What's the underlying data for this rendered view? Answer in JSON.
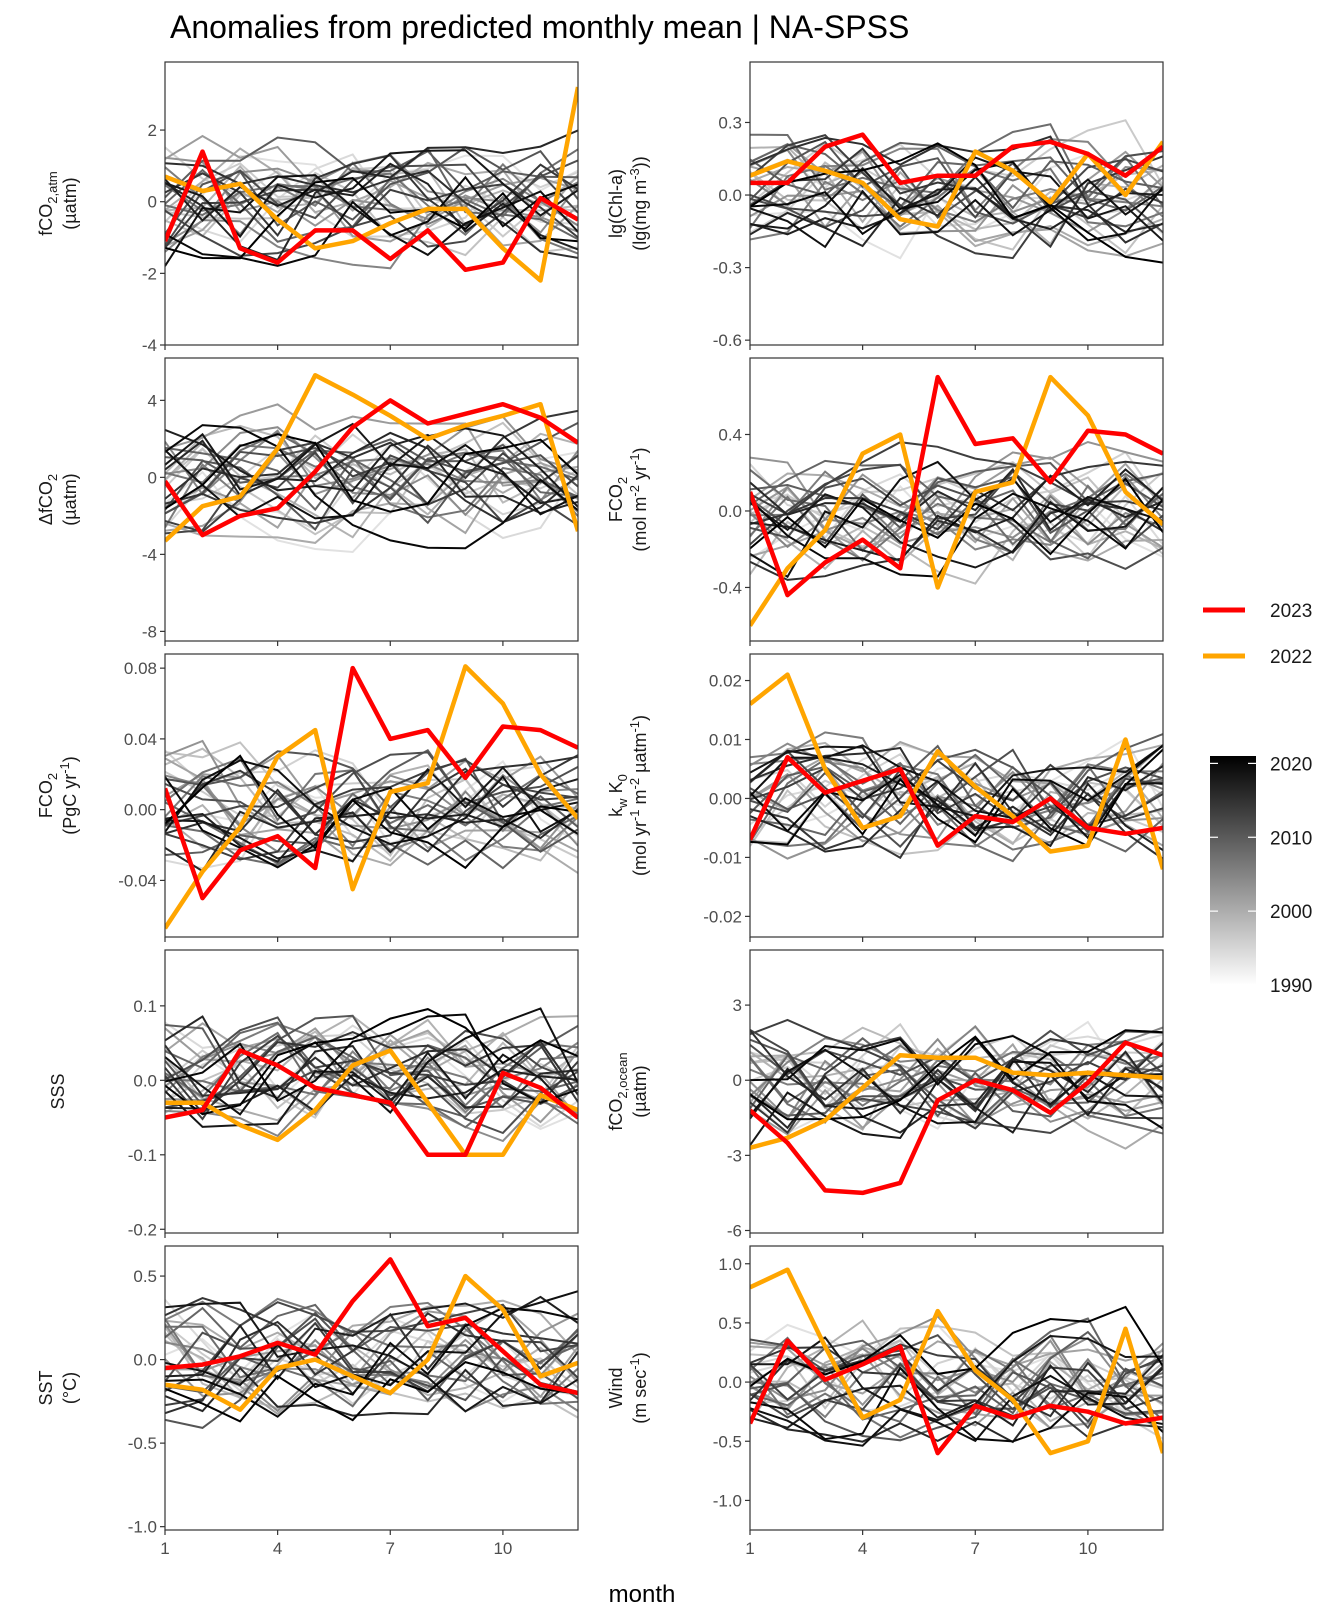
{
  "title": "Anomalies from predicted monthly mean | NA-SPSS",
  "xlabel": "month",
  "legend": {
    "highlight": [
      {
        "label": "2023",
        "color": "#ff0000"
      },
      {
        "label": "2022",
        "color": "#ffa500"
      }
    ],
    "colorbar": {
      "labels": [
        "2020",
        "2010",
        "2000",
        "1990"
      ],
      "range": [
        1990,
        2021
      ],
      "low_color": "#ffffff",
      "high_color": "#000000"
    }
  },
  "chart_data": [
    {
      "type": "line",
      "panel": "fCO2,atm",
      "ylabel_lines": [
        [
          "fCO",
          {
            "sub": "2,atm"
          }
        ],
        [
          "(µatm)"
        ]
      ],
      "x": [
        1,
        2,
        3,
        4,
        5,
        6,
        7,
        8,
        9,
        10,
        11,
        12
      ],
      "xlim": [
        1,
        12
      ],
      "xticks": [
        1,
        4,
        7,
        10
      ],
      "ylim": [
        -4,
        3.9
      ],
      "yticks": [
        2,
        0,
        -2,
        -4
      ],
      "ytick_labels": [
        "2",
        "0",
        "-2",
        "-4"
      ],
      "series": [
        {
          "name": "2023",
          "values": [
            -1.1,
            1.4,
            -1.3,
            -1.7,
            -0.8,
            -0.8,
            -1.6,
            -0.8,
            -1.9,
            -1.7,
            0.1,
            -0.5
          ]
        },
        {
          "name": "2022",
          "values": [
            0.7,
            0.3,
            0.5,
            -0.5,
            -1.3,
            -1.1,
            -0.6,
            -0.2,
            -0.2,
            -1.3,
            -2.2,
            3.2
          ]
        }
      ]
    },
    {
      "type": "line",
      "panel": "lg(Chl-a)",
      "ylabel_lines": [
        [
          "lg(Chl-a)"
        ],
        [
          "(lg(mg m",
          {
            "sup": "-3"
          },
          "))"
        ]
      ],
      "x": [
        1,
        2,
        3,
        4,
        5,
        6,
        7,
        8,
        9,
        10,
        11,
        12
      ],
      "xlim": [
        1,
        12
      ],
      "xticks": [
        1,
        4,
        7,
        10
      ],
      "ylim": [
        -0.62,
        0.55
      ],
      "yticks": [
        0.3,
        0,
        -0.3,
        -0.6
      ],
      "ytick_labels": [
        "0.3",
        "0.0",
        "-0.3",
        "-0.6"
      ],
      "series": [
        {
          "name": "2023",
          "values": [
            0.05,
            0.05,
            0.2,
            0.25,
            0.05,
            0.08,
            0.08,
            0.2,
            0.22,
            0.17,
            0.08,
            0.2
          ]
        },
        {
          "name": "2022",
          "values": [
            0.08,
            0.14,
            0.1,
            0.05,
            -0.1,
            -0.13,
            0.18,
            0.1,
            -0.03,
            0.17,
            0.0,
            0.22
          ]
        }
      ]
    },
    {
      "type": "line",
      "panel": "ΔfCO2",
      "ylabel_lines": [
        [
          "ΔfCO",
          {
            "sub": "2"
          }
        ],
        [
          "(µatm)"
        ]
      ],
      "x": [
        1,
        2,
        3,
        4,
        5,
        6,
        7,
        8,
        9,
        10,
        11,
        12
      ],
      "xlim": [
        1,
        12
      ],
      "xticks": [
        1,
        4,
        7,
        10
      ],
      "ylim": [
        -8.5,
        6.2
      ],
      "yticks": [
        4,
        0,
        -4,
        -8
      ],
      "ytick_labels": [
        "4",
        "0",
        "-4",
        "-8"
      ],
      "series": [
        {
          "name": "2023",
          "values": [
            -0.2,
            -3.0,
            -2.0,
            -1.6,
            0.3,
            2.6,
            4.0,
            2.8,
            3.3,
            3.8,
            3.1,
            1.8
          ]
        },
        {
          "name": "2022",
          "values": [
            -3.3,
            -1.5,
            -1.0,
            1.5,
            5.3,
            4.3,
            3.2,
            2.0,
            2.7,
            3.2,
            3.8,
            -2.8
          ]
        }
      ]
    },
    {
      "type": "line",
      "panel": "FCO2 (mol)",
      "ylabel_lines": [
        [
          "FCO",
          {
            "sub": "2"
          }
        ],
        [
          "(mol m",
          {
            "sup": "-2"
          },
          " yr",
          {
            "sup": "-1"
          },
          ")"
        ]
      ],
      "x": [
        1,
        2,
        3,
        4,
        5,
        6,
        7,
        8,
        9,
        10,
        11,
        12
      ],
      "xlim": [
        1,
        12
      ],
      "xticks": [
        1,
        4,
        7,
        10
      ],
      "ylim": [
        -0.68,
        0.8
      ],
      "yticks": [
        0.4,
        0,
        -0.4
      ],
      "ytick_labels": [
        "0.4",
        "0.0",
        "-0.4"
      ],
      "series": [
        {
          "name": "2023",
          "values": [
            0.1,
            -0.44,
            -0.27,
            -0.15,
            -0.3,
            0.7,
            0.35,
            0.38,
            0.15,
            0.42,
            0.4,
            0.3
          ]
        },
        {
          "name": "2022",
          "values": [
            -0.6,
            -0.3,
            -0.1,
            0.3,
            0.4,
            -0.4,
            0.1,
            0.15,
            0.7,
            0.5,
            0.1,
            -0.07
          ]
        }
      ]
    },
    {
      "type": "line",
      "panel": "FCO2 (PgC)",
      "ylabel_lines": [
        [
          "FCO",
          {
            "sub": "2"
          }
        ],
        [
          "(PgC yr",
          {
            "sup": "-1"
          },
          ")"
        ]
      ],
      "x": [
        1,
        2,
        3,
        4,
        5,
        6,
        7,
        8,
        9,
        10,
        11,
        12
      ],
      "xlim": [
        1,
        12
      ],
      "xticks": [
        1,
        4,
        7,
        10
      ],
      "ylim": [
        -0.072,
        0.088
      ],
      "yticks": [
        0.08,
        0.04,
        0,
        -0.04
      ],
      "ytick_labels": [
        "0.08",
        "0.04",
        "0.00",
        "-0.04"
      ],
      "series": [
        {
          "name": "2023",
          "values": [
            0.012,
            -0.05,
            -0.023,
            -0.015,
            -0.033,
            0.08,
            0.04,
            0.045,
            0.018,
            0.047,
            0.045,
            0.035
          ]
        },
        {
          "name": "2022",
          "values": [
            -0.067,
            -0.035,
            -0.01,
            0.03,
            0.045,
            -0.045,
            0.01,
            0.015,
            0.081,
            0.06,
            0.02,
            -0.005
          ]
        }
      ]
    },
    {
      "type": "line",
      "panel": "kw K0",
      "ylabel_lines": [
        [
          "k",
          {
            "sub": "w"
          },
          " K",
          {
            "sub": "0"
          }
        ],
        [
          "(mol yr",
          {
            "sup": "-1"
          },
          " m",
          {
            "sup": "-2"
          },
          " µatm",
          {
            "sup": "-1"
          },
          ")"
        ]
      ],
      "x": [
        1,
        2,
        3,
        4,
        5,
        6,
        7,
        8,
        9,
        10,
        11,
        12
      ],
      "xlim": [
        1,
        12
      ],
      "xticks": [
        1,
        4,
        7,
        10
      ],
      "ylim": [
        -0.0235,
        0.0245
      ],
      "yticks": [
        0.02,
        0.01,
        0,
        -0.01,
        -0.02
      ],
      "ytick_labels": [
        "0.02",
        "0.01",
        "0.00",
        "-0.01",
        "-0.02"
      ],
      "series": [
        {
          "name": "2023",
          "values": [
            -0.007,
            0.007,
            0.001,
            0.003,
            0.005,
            -0.008,
            -0.003,
            -0.004,
            0.0,
            -0.005,
            -0.006,
            -0.005
          ]
        },
        {
          "name": "2022",
          "values": [
            0.016,
            0.021,
            0.005,
            -0.005,
            -0.003,
            0.008,
            0.002,
            -0.003,
            -0.009,
            -0.008,
            0.01,
            -0.012
          ]
        }
      ]
    },
    {
      "type": "line",
      "panel": "SSS",
      "ylabel_lines": [
        [
          "SSS"
        ]
      ],
      "x": [
        1,
        2,
        3,
        4,
        5,
        6,
        7,
        8,
        9,
        10,
        11,
        12
      ],
      "xlim": [
        1,
        12
      ],
      "xticks": [
        1,
        4,
        7,
        10
      ],
      "ylim": [
        -0.205,
        0.175
      ],
      "yticks": [
        0.1,
        0,
        -0.1,
        -0.2
      ],
      "ytick_labels": [
        "0.1",
        "0.0",
        "-0.1",
        "-0.2"
      ],
      "series": [
        {
          "name": "2023",
          "values": [
            -0.05,
            -0.04,
            0.04,
            0.02,
            -0.01,
            -0.02,
            -0.03,
            -0.1,
            -0.1,
            0.01,
            -0.01,
            -0.05
          ]
        },
        {
          "name": "2022",
          "values": [
            -0.03,
            -0.03,
            -0.06,
            -0.08,
            -0.04,
            0.02,
            0.04,
            -0.03,
            -0.1,
            -0.1,
            -0.02,
            -0.04
          ]
        }
      ]
    },
    {
      "type": "line",
      "panel": "fCO2,ocean",
      "ylabel_lines": [
        [
          "fCO",
          {
            "sub": "2,ocean"
          }
        ],
        [
          "(µatm)"
        ]
      ],
      "x": [
        1,
        2,
        3,
        4,
        5,
        6,
        7,
        8,
        9,
        10,
        11,
        12
      ],
      "xlim": [
        1,
        12
      ],
      "xticks": [
        1,
        4,
        7,
        10
      ],
      "ylim": [
        -6.1,
        5.2
      ],
      "yticks": [
        3,
        0,
        -3,
        -6
      ],
      "ytick_labels": [
        "3",
        "0",
        "-3",
        "-6"
      ],
      "series": [
        {
          "name": "2023",
          "values": [
            -1.2,
            -2.5,
            -4.4,
            -4.5,
            -4.1,
            -0.8,
            0.0,
            -0.4,
            -1.3,
            -0.1,
            1.5,
            1.0
          ]
        },
        {
          "name": "2022",
          "values": [
            -2.7,
            -2.3,
            -1.6,
            -0.3,
            1.0,
            0.9,
            0.9,
            0.3,
            0.2,
            0.3,
            0.2,
            0.1
          ]
        }
      ]
    },
    {
      "type": "line",
      "panel": "SST",
      "ylabel_lines": [
        [
          "SST"
        ],
        [
          "(°C)"
        ]
      ],
      "x": [
        1,
        2,
        3,
        4,
        5,
        6,
        7,
        8,
        9,
        10,
        11,
        12
      ],
      "xlim": [
        1,
        12
      ],
      "xticks": [
        1,
        4,
        7,
        10
      ],
      "ylim": [
        -1.02,
        0.68
      ],
      "yticks": [
        0.5,
        0,
        -0.5,
        -1
      ],
      "ytick_labels": [
        "0.5",
        "0.0",
        "-0.5",
        "-1.0"
      ],
      "series": [
        {
          "name": "2023",
          "values": [
            -0.05,
            -0.03,
            0.02,
            0.1,
            0.03,
            0.35,
            0.6,
            0.2,
            0.25,
            0.05,
            -0.15,
            -0.2
          ]
        },
        {
          "name": "2022",
          "values": [
            -0.15,
            -0.18,
            -0.3,
            -0.05,
            0.0,
            -0.1,
            -0.2,
            0.0,
            0.5,
            0.3,
            -0.1,
            -0.02
          ]
        }
      ]
    },
    {
      "type": "line",
      "panel": "Wind",
      "ylabel_lines": [
        [
          "Wind"
        ],
        [
          "(m sec",
          {
            "sup": "-1"
          },
          ")"
        ]
      ],
      "x": [
        1,
        2,
        3,
        4,
        5,
        6,
        7,
        8,
        9,
        10,
        11,
        12
      ],
      "xlim": [
        1,
        12
      ],
      "xticks": [
        1,
        4,
        7,
        10
      ],
      "ylim": [
        -1.25,
        1.15
      ],
      "yticks": [
        1,
        0.5,
        0,
        -0.5,
        -1
      ],
      "ytick_labels": [
        "1.0",
        "0.5",
        "0.0",
        "-0.5",
        "-1.0"
      ],
      "series": [
        {
          "name": "2023",
          "values": [
            -0.35,
            0.35,
            0.02,
            0.15,
            0.3,
            -0.6,
            -0.2,
            -0.3,
            -0.2,
            -0.25,
            -0.35,
            -0.3
          ]
        },
        {
          "name": "2022",
          "values": [
            0.8,
            0.95,
            0.3,
            -0.3,
            -0.15,
            0.6,
            0.1,
            -0.15,
            -0.6,
            -0.5,
            0.45,
            -0.6
          ]
        }
      ]
    }
  ]
}
